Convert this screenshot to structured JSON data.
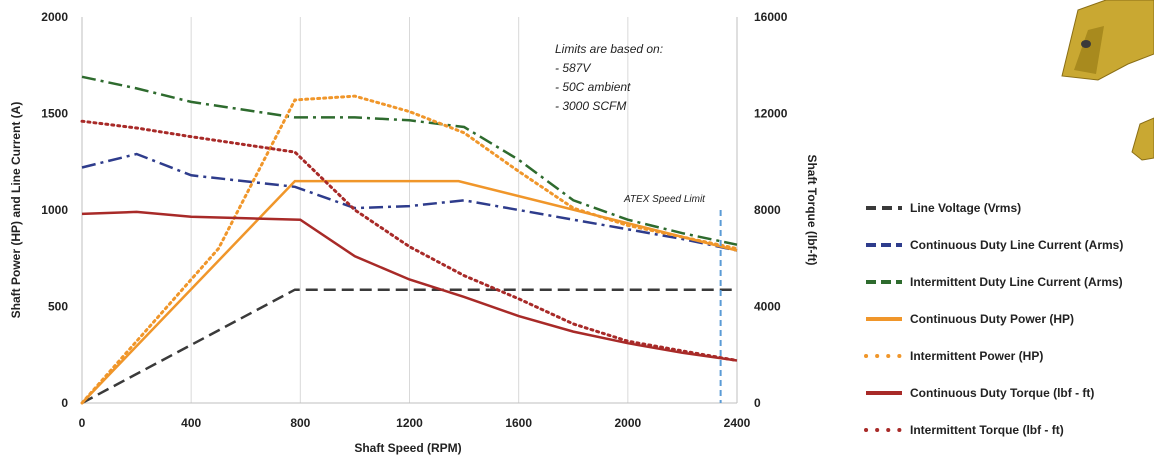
{
  "chart_data": {
    "type": "line",
    "xlabel": "Shaft Speed (RPM)",
    "ylabel": "Shaft Power (HP) and  Line Current (A)",
    "y2label": "Shaft Torque (lbf-ft)",
    "xlim": [
      0,
      2400
    ],
    "ylim": [
      0,
      2000
    ],
    "y2lim": [
      0,
      16000
    ],
    "x_ticks": [
      "0",
      "400",
      "800",
      "1200",
      "1600",
      "2000",
      "2400"
    ],
    "y_ticks": [
      "0",
      "500",
      "1000",
      "1500",
      "2000"
    ],
    "y2_ticks": [
      "0",
      "4000",
      "8000",
      "12000",
      "16000"
    ],
    "grid": "vertical",
    "legend_position": "right",
    "annotation": {
      "lines": [
        "Limits are based on:",
        "- 587V",
        "- 50C ambient",
        "- 3000 SCFM"
      ]
    },
    "atex": {
      "label": "ATEX Speed Limit",
      "x": 2340,
      "color": "#5b9bd5"
    },
    "series": [
      {
        "name": "Line Voltage (Vrms)",
        "axis": "left",
        "style": "dashed",
        "color": "#3a3a3a",
        "x": [
          0,
          780,
          800,
          2400
        ],
        "y": [
          0,
          587,
          587,
          587
        ]
      },
      {
        "name": "Continuous Duty Line Current (Arms)",
        "axis": "left",
        "style": "dashdot",
        "color": "#2e3c8c",
        "x": [
          0,
          200,
          400,
          780,
          1000,
          1200,
          1400,
          1600,
          1800,
          2000,
          2200,
          2400
        ],
        "y": [
          1220,
          1290,
          1180,
          1120,
          1010,
          1020,
          1050,
          1000,
          950,
          900,
          850,
          790
        ]
      },
      {
        "name": "Intermittent Duty Line Current (Arms)",
        "axis": "left",
        "style": "dashdot",
        "color": "#2e6b2e",
        "x": [
          0,
          200,
          400,
          780,
          1000,
          1200,
          1400,
          1600,
          1800,
          2000,
          2200,
          2400
        ],
        "y": [
          1690,
          1630,
          1560,
          1480,
          1480,
          1465,
          1430,
          1260,
          1050,
          950,
          880,
          820
        ]
      },
      {
        "name": "Continuous Duty Power (HP)",
        "axis": "left",
        "style": "solid",
        "color": "#f0962a",
        "x": [
          0,
          780,
          1380,
          2400
        ],
        "y": [
          0,
          1150,
          1150,
          790
        ]
      },
      {
        "name": "Intermittent Power (HP)",
        "axis": "left",
        "style": "dotted",
        "color": "#f0962a",
        "x": [
          0,
          500,
          780,
          1000,
          1200,
          1400,
          1600,
          1800,
          2000,
          2200,
          2400
        ],
        "y": [
          0,
          800,
          1570,
          1590,
          1510,
          1400,
          1200,
          1010,
          920,
          860,
          800
        ]
      },
      {
        "name": "Continuous Duty Torque (lbf - ft)",
        "axis": "right",
        "style": "solid",
        "color": "#a82a28",
        "x": [
          0,
          200,
          400,
          800,
          1000,
          1200,
          1400,
          1600,
          1800,
          2000,
          2200,
          2400
        ],
        "y": [
          7840,
          7920,
          7720,
          7600,
          6080,
          5120,
          4400,
          3600,
          2960,
          2480,
          2080,
          1760
        ]
      },
      {
        "name": "Intermittent Torque (lbf - ft)",
        "axis": "right",
        "style": "dotted",
        "color": "#a82a28",
        "x": [
          0,
          200,
          400,
          780,
          1000,
          1200,
          1400,
          1600,
          1800,
          2000,
          2200,
          2400
        ],
        "y": [
          11680,
          11400,
          11040,
          10400,
          8000,
          6480,
          5280,
          4320,
          3280,
          2560,
          2160,
          1760
        ]
      }
    ]
  }
}
